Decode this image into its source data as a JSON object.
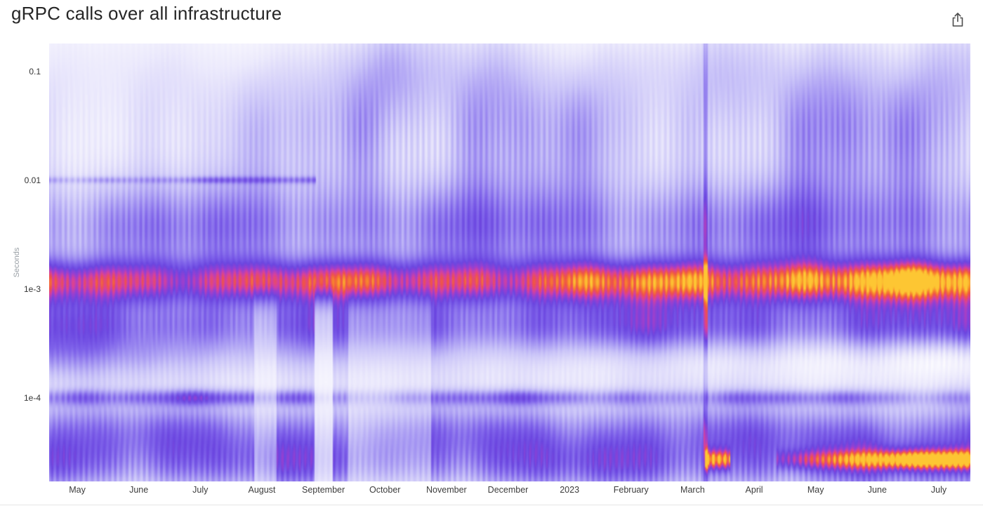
{
  "header": {
    "title": "gRPC calls over all infrastructure"
  },
  "chart_data": {
    "type": "heatmap",
    "title": "gRPC calls over all infrastructure",
    "xlabel": "",
    "ylabel": "Seconds",
    "y_scale": "log",
    "grid": "off",
    "legend": "none",
    "y_ticks": [
      "0.1",
      "0.01",
      "1e-3",
      "1e-4"
    ],
    "y_tick_values": [
      0.1,
      0.01,
      0.001,
      0.0001
    ],
    "y_domain": {
      "top": 0.18,
      "bottom": 1.7e-05
    },
    "x_ticks": [
      "May",
      "June",
      "July",
      "August",
      "September",
      "October",
      "November",
      "December",
      "2023",
      "February",
      "March",
      "April",
      "May",
      "June",
      "July"
    ],
    "summary": "Latency density heatmap of gRPC call durations, April 2022 through July 2023. Dominant hot band (red to orange-yellow) near 1e-3 s that intensifies toward mid-2023; diffuse light-blue haze between 0.01 s and 0.1 s strongest in Sep-Dec 2022; secondary purple bands below 1e-4 s with an orange streak near the bottom from spring 2023 onward; a dark vertical stripe in late March 2023.",
    "modes": [
      {
        "seconds": 0.0012,
        "label": "primary hot band, highest density"
      },
      {
        "seconds": 0.0004,
        "label": "secondary purple band"
      },
      {
        "seconds": 0.0001,
        "label": "thin dense line"
      },
      {
        "seconds": 2e-05,
        "label": "bottom purple band with orange streak after April 2023"
      }
    ],
    "render": {
      "seed": 7,
      "colormap": [
        {
          "t": 0.0,
          "color": "#ffffff"
        },
        {
          "t": 0.12,
          "color": "#eceafc"
        },
        {
          "t": 0.26,
          "color": "#c9c3f8"
        },
        {
          "t": 0.38,
          "color": "#a495f2"
        },
        {
          "t": 0.5,
          "color": "#7f63ea"
        },
        {
          "t": 0.6,
          "color": "#6b46e0"
        },
        {
          "t": 0.7,
          "color": "#9a3fd0"
        },
        {
          "t": 0.78,
          "color": "#d8419b"
        },
        {
          "t": 0.86,
          "color": "#ef5348"
        },
        {
          "t": 0.93,
          "color": "#f8862c"
        },
        {
          "t": 1.0,
          "color": "#fdc633"
        }
      ],
      "bands": [
        {
          "name": "top-streaks",
          "group": "top",
          "c": -0.95,
          "s": 0.35,
          "a": 0.09,
          "ramp": [
            0.6,
            1.15
          ],
          "noise": 0.9,
          "hf": 0.3,
          "bumps": [
            {
              "c": 0.345,
              "w": 0.05,
              "g": 0.9
            },
            {
              "c": 0.48,
              "w": 0.06,
              "g": 0.6
            },
            {
              "c": 0.86,
              "w": 0.13,
              "g": 0.4
            }
          ]
        },
        {
          "name": "upper-haze",
          "group": "top",
          "c": -1.55,
          "s": 0.45,
          "a": 0.2,
          "ramp": [
            0.7,
            1.1
          ],
          "noise": 0.7,
          "hf": 0.22,
          "bumps": [
            {
              "c": 0.345,
              "w": 0.05,
              "g": 0.8
            },
            {
              "c": 0.48,
              "w": 0.06,
              "g": 0.55
            },
            {
              "c": 0.86,
              "w": 0.13,
              "g": 0.35
            }
          ]
        },
        {
          "name": "line-10ms",
          "group": "mid",
          "c": -2.0,
          "s": 0.022,
          "noise": 0.5,
          "hf": 0.15,
          "segments": [
            {
              "from": 0.0,
              "to": 0.29,
              "amp": 0.17
            }
          ]
        },
        {
          "name": "upper-mid-purple",
          "group": "mid",
          "c": -2.45,
          "s": 0.33,
          "a": 0.4,
          "ramp": [
            0.95,
            1.05
          ],
          "noise": 0.3,
          "hf": 0.12
        },
        {
          "name": "hot-1ms",
          "group": "hot",
          "c": -2.93,
          "s": 0.14,
          "a": 0.62,
          "ramp": [
            0.92,
            1.12
          ],
          "noise": 0.22,
          "hf": 0.1,
          "bumps": [
            {
              "c": 0.87,
              "w": 0.1,
              "g": 0.18
            }
          ]
        },
        {
          "name": "sub-hot",
          "group": "low",
          "c": -3.32,
          "s": 0.2,
          "a": 0.42,
          "ramp": [
            0.95,
            1.1
          ],
          "noise": 0.3,
          "hf": 0.12
        },
        {
          "name": "light-strip",
          "group": "low",
          "c": -3.62,
          "s": 0.14,
          "a": 0.1,
          "ramp": [
            1.3,
            -1.6
          ],
          "noise": 0.4,
          "hf": 0.2
        },
        {
          "name": "low-ambient",
          "group": "low",
          "c": -3.9,
          "s": 0.5,
          "a": 0.14,
          "ramp": [
            1.0,
            1.0
          ],
          "noise": 0.3,
          "hf": 0.15
        },
        {
          "name": "line-100us",
          "group": "low",
          "c": -4.0,
          "s": 0.05,
          "a": 0.26,
          "ramp": [
            1.15,
            0.75
          ],
          "noise": 0.5,
          "hf": 0.2
        },
        {
          "name": "sub-100us",
          "group": "low",
          "c": -4.3,
          "s": 0.18,
          "a": 0.26,
          "ramp": [
            1.0,
            1.0
          ],
          "noise": 0.35,
          "hf": 0.15
        },
        {
          "name": "bottom-purple",
          "group": "low",
          "c": -4.62,
          "s": 0.2,
          "a": 0.4,
          "ramp": [
            1.0,
            1.05
          ],
          "noise": 0.35,
          "hf": 0.15
        },
        {
          "name": "bottom-hot",
          "group": "hot",
          "c": -4.57,
          "s": 0.06,
          "noise": 0.3,
          "hf": 0.15,
          "segments": [
            {
              "from": 0.712,
              "to": 0.74,
              "amp": 0.55
            },
            {
              "from": 0.79,
              "to": 1.0,
              "amp": 0.22,
              "ampTo": 0.62
            }
          ]
        }
      ],
      "events": [
        {
          "name": "late-march-dark-stripe",
          "t": 0.7125,
          "w": 0.002,
          "groups": "all",
          "mult": 1.25,
          "vadd": 0.1
        },
        {
          "name": "early-september-light-gap",
          "t": 0.2975,
          "w": 0.01,
          "groups": [
            "low"
          ],
          "mult": 0.35
        },
        {
          "name": "october-light-bottom",
          "t": 0.37,
          "w": 0.045,
          "groups": [
            "low"
          ],
          "mult": 0.65
        },
        {
          "name": "mid-august-light-bottom",
          "t": 0.235,
          "w": 0.012,
          "groups": [
            "low"
          ],
          "mult": 0.6
        }
      ]
    }
  }
}
